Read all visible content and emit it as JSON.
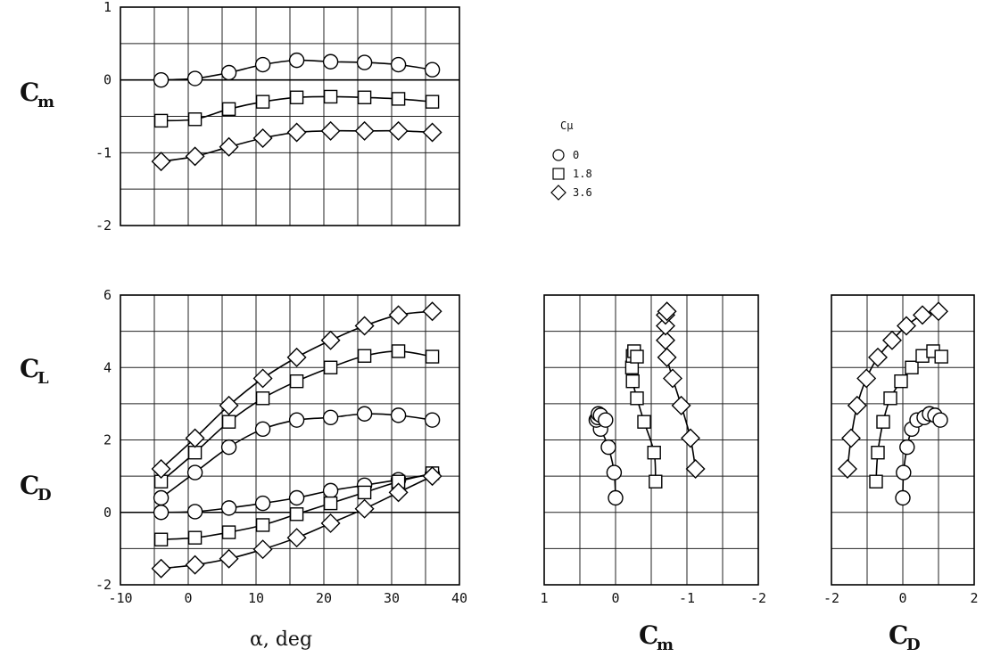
{
  "chart_data": [
    {
      "type": "line",
      "panel": "Cm-vs-alpha",
      "ylabel": "Cm",
      "xlim": [
        -10,
        40
      ],
      "ylim": [
        -2,
        1
      ],
      "yticks": [
        "1",
        "0",
        "-1",
        "-2"
      ],
      "legend": {
        "title": "Cμ",
        "position": "top-right",
        "entries": [
          {
            "marker": "circle",
            "label": "0"
          },
          {
            "marker": "square",
            "label": "1.8"
          },
          {
            "marker": "diamond",
            "label": "3.6"
          }
        ]
      },
      "series": [
        {
          "name": "0",
          "marker": "circle",
          "x": [
            -4,
            1,
            6,
            11,
            16,
            21,
            26,
            31,
            36
          ],
          "y": [
            0.0,
            0.02,
            0.1,
            0.21,
            0.27,
            0.25,
            0.24,
            0.21,
            0.14
          ]
        },
        {
          "name": "1.8",
          "marker": "square",
          "x": [
            -4,
            1,
            6,
            11,
            16,
            21,
            26,
            31,
            36
          ],
          "y": [
            -0.56,
            -0.54,
            -0.4,
            -0.3,
            -0.24,
            -0.23,
            -0.24,
            -0.26,
            -0.3
          ]
        },
        {
          "name": "3.6",
          "marker": "diamond",
          "x": [
            -4,
            1,
            6,
            11,
            16,
            21,
            26,
            31,
            36
          ],
          "y": [
            -1.12,
            -1.05,
            -0.92,
            -0.8,
            -0.72,
            -0.7,
            -0.7,
            -0.7,
            -0.72
          ]
        }
      ]
    },
    {
      "type": "line",
      "panel": "CL-CD-vs-alpha",
      "ylabel": "CL / CD",
      "xlabel": "α, deg",
      "xlim": [
        -10,
        40
      ],
      "ylim": [
        -2,
        6
      ],
      "xticks": [
        "-10",
        "0",
        "10",
        "20",
        "30",
        "40"
      ],
      "yticks": [
        "6",
        "4",
        "2",
        "0",
        "-2"
      ],
      "series": [
        {
          "name": "CL 0",
          "marker": "circle",
          "x": [
            -4,
            1,
            6,
            11,
            16,
            21,
            26,
            31,
            36
          ],
          "y": [
            0.4,
            1.1,
            1.8,
            2.3,
            2.55,
            2.62,
            2.72,
            2.68,
            2.55
          ]
        },
        {
          "name": "CL 1.8",
          "marker": "square",
          "x": [
            -4,
            1,
            6,
            11,
            16,
            21,
            26,
            31,
            36
          ],
          "y": [
            0.85,
            1.65,
            2.5,
            3.15,
            3.62,
            4.0,
            4.32,
            4.45,
            4.3
          ]
        },
        {
          "name": "CL 3.6",
          "marker": "diamond",
          "x": [
            -4,
            1,
            6,
            11,
            16,
            21,
            26,
            31,
            36
          ],
          "y": [
            1.2,
            2.05,
            2.95,
            3.7,
            4.28,
            4.75,
            5.15,
            5.45,
            5.55
          ]
        },
        {
          "name": "CD 0",
          "marker": "circle",
          "x": [
            -4,
            1,
            6,
            11,
            16,
            21,
            26,
            31,
            36
          ],
          "y": [
            0.0,
            0.02,
            0.12,
            0.25,
            0.4,
            0.6,
            0.75,
            0.9,
            1.05
          ]
        },
        {
          "name": "CD 1.8",
          "marker": "square",
          "x": [
            -4,
            1,
            6,
            11,
            16,
            21,
            26,
            31,
            36
          ],
          "y": [
            -0.75,
            -0.7,
            -0.55,
            -0.35,
            -0.05,
            0.25,
            0.55,
            0.85,
            1.08
          ]
        },
        {
          "name": "CD 3.6",
          "marker": "diamond",
          "x": [
            -4,
            1,
            6,
            11,
            16,
            21,
            26,
            31,
            36
          ],
          "y": [
            -1.55,
            -1.45,
            -1.28,
            -1.02,
            -0.7,
            -0.3,
            0.1,
            0.55,
            1.0
          ]
        }
      ]
    },
    {
      "type": "line",
      "panel": "CL-vs-Cm",
      "xlabel": "Cm",
      "xlim": [
        1,
        -2
      ],
      "ylim": [
        -2,
        6
      ],
      "xticks": [
        "1",
        "0",
        "-1",
        "-2"
      ],
      "series": [
        {
          "name": "0",
          "marker": "circle",
          "x": [
            0.0,
            0.02,
            0.1,
            0.21,
            0.27,
            0.25,
            0.24,
            0.21,
            0.14
          ],
          "y": [
            0.4,
            1.1,
            1.8,
            2.3,
            2.55,
            2.62,
            2.72,
            2.68,
            2.55
          ]
        },
        {
          "name": "1.8",
          "marker": "square",
          "x": [
            -0.56,
            -0.54,
            -0.4,
            -0.3,
            -0.24,
            -0.23,
            -0.24,
            -0.26,
            -0.3
          ],
          "y": [
            0.85,
            1.65,
            2.5,
            3.15,
            3.62,
            4.0,
            4.32,
            4.45,
            4.3
          ]
        },
        {
          "name": "3.6",
          "marker": "diamond",
          "x": [
            -1.12,
            -1.05,
            -0.92,
            -0.8,
            -0.72,
            -0.7,
            -0.7,
            -0.7,
            -0.72
          ],
          "y": [
            1.2,
            2.05,
            2.95,
            3.7,
            4.28,
            4.75,
            5.15,
            5.45,
            5.55
          ]
        }
      ]
    },
    {
      "type": "line",
      "panel": "CL-vs-CD",
      "xlabel": "CD",
      "xlim": [
        -2,
        2
      ],
      "ylim": [
        -2,
        6
      ],
      "xticks": [
        "-2",
        "0",
        "2"
      ],
      "series": [
        {
          "name": "0",
          "marker": "circle",
          "x": [
            0.0,
            0.02,
            0.12,
            0.25,
            0.4,
            0.6,
            0.75,
            0.9,
            1.05
          ],
          "y": [
            0.4,
            1.1,
            1.8,
            2.3,
            2.55,
            2.62,
            2.72,
            2.68,
            2.55
          ]
        },
        {
          "name": "1.8",
          "marker": "square",
          "x": [
            -0.75,
            -0.7,
            -0.55,
            -0.35,
            -0.05,
            0.25,
            0.55,
            0.85,
            1.08
          ],
          "y": [
            0.85,
            1.65,
            2.5,
            3.15,
            3.62,
            4.0,
            4.32,
            4.45,
            4.3
          ]
        },
        {
          "name": "3.6",
          "marker": "diamond",
          "x": [
            -1.55,
            -1.45,
            -1.28,
            -1.02,
            -0.7,
            -0.3,
            0.1,
            0.55,
            1.0
          ],
          "y": [
            1.2,
            2.05,
            2.95,
            3.7,
            4.28,
            4.75,
            5.15,
            5.45,
            5.55
          ]
        }
      ]
    }
  ],
  "labels": {
    "cm_symbol": "C",
    "cm_sub": "m",
    "cl_symbol": "C",
    "cl_sub": "L",
    "cd_symbol": "C",
    "cd_sub": "D",
    "alpha_label": "α, deg"
  }
}
